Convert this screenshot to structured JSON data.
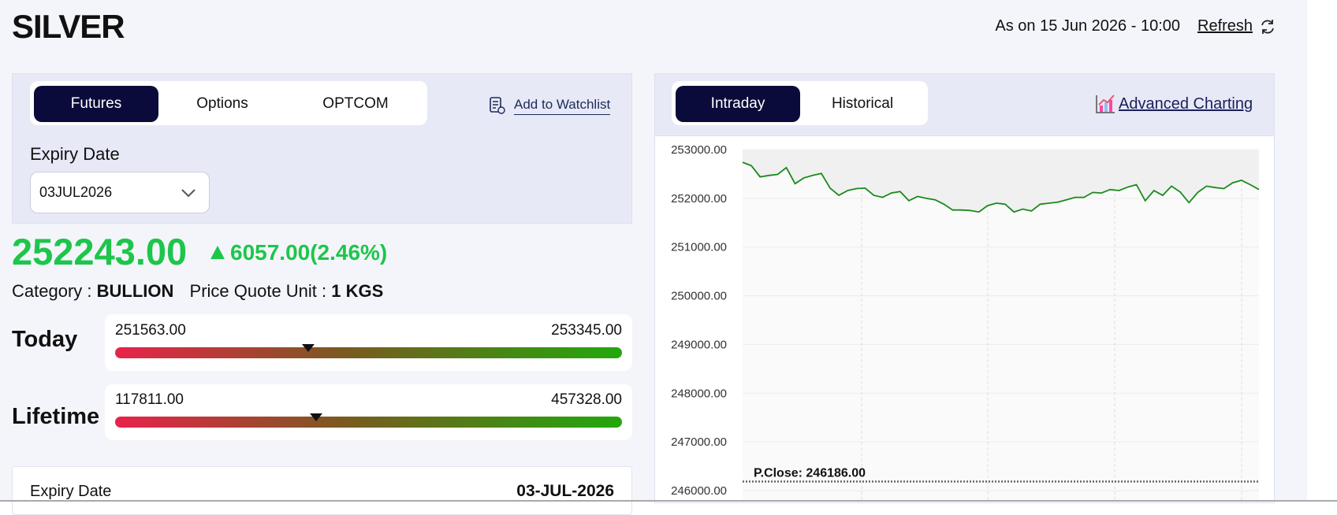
{
  "header": {
    "title": "SILVER",
    "as_on": "As on 15 Jun 2026 - 10:00",
    "refresh": "Refresh"
  },
  "contract_panel": {
    "tabs": [
      "Futures",
      "Options",
      "OPTCOM"
    ],
    "watchlist": "Add to Watchlist",
    "expiry_label": "Expiry Date",
    "expiry_value": "03JUL2026"
  },
  "quote": {
    "price": {
      "value": 252243,
      "label": "252243.00"
    },
    "change": "6057.00(2.46%)",
    "category_label": "Category :",
    "category": "BULLION",
    "unit_label": "Price Quote Unit :",
    "unit": "1 KGS"
  },
  "ranges": [
    {
      "label": "Today",
      "low": {
        "value": 251563,
        "label": "251563.00"
      },
      "high": {
        "value": 253345,
        "label": "253345.00"
      }
    },
    {
      "label": "Lifetime",
      "low": {
        "value": 117811,
        "label": "117811.00"
      },
      "high": {
        "value": 457328,
        "label": "457328.00"
      }
    }
  ],
  "details": {
    "label": "Expiry Date",
    "value": "03-JUL-2026"
  },
  "chart_panel": {
    "tabs": [
      "Intraday",
      "Historical"
    ],
    "advanced": "Advanced Charting"
  },
  "chart_data": {
    "type": "line",
    "color": "#1a8a1a",
    "values": [
      252740,
      252670,
      252440,
      252470,
      252490,
      252630,
      252300,
      252420,
      252470,
      252510,
      252210,
      252060,
      252160,
      252200,
      252210,
      252060,
      252020,
      252110,
      252140,
      251950,
      252040,
      252000,
      251970,
      251880,
      251760,
      251760,
      251750,
      251720,
      251850,
      251900,
      251880,
      251720,
      251780,
      251740,
      251880,
      251900,
      251920,
      251970,
      252020,
      252020,
      252120,
      252110,
      252180,
      252160,
      252230,
      252280,
      251950,
      252160,
      252060,
      252250,
      252130,
      251910,
      252120,
      252250,
      252220,
      252200,
      252320,
      252370,
      252280,
      252180
    ],
    "ylim": [
      246000,
      253000
    ],
    "yticks": [
      {
        "value": 253000,
        "label": "253000.00"
      },
      {
        "value": 252000,
        "label": "252000.00"
      },
      {
        "value": 251000,
        "label": "251000.00"
      },
      {
        "value": 250000,
        "label": "250000.00"
      },
      {
        "value": 249000,
        "label": "249000.00"
      },
      {
        "value": 248000,
        "label": "248000.00"
      },
      {
        "value": 247000,
        "label": "247000.00"
      },
      {
        "value": 246000,
        "label": "246000.00"
      }
    ],
    "reference_line": {
      "value": 246186,
      "label": "P.Close: 246186.00"
    }
  }
}
